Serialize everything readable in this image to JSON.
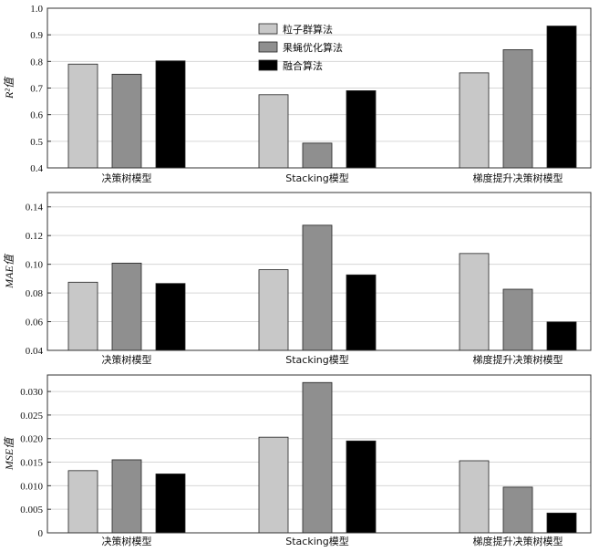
{
  "chart_data": [
    {
      "type": "bar",
      "categories": [
        "决策树模型",
        "Stacking模型",
        "梯度提升决策树模型"
      ],
      "series": [
        {
          "name": "粒子群算法",
          "values": [
            0.79,
            0.675,
            0.757
          ]
        },
        {
          "name": "果蝇优化算法",
          "values": [
            0.752,
            0.493,
            0.844
          ]
        },
        {
          "name": "融合算法",
          "values": [
            0.802,
            0.69,
            0.933
          ]
        }
      ],
      "ylabel": "R²值",
      "ylim": [
        0.4,
        1.0
      ],
      "yticks": [
        "0.4",
        "0.5",
        "0.6",
        "0.7",
        "0.8",
        "0.9",
        "1.0"
      ],
      "grid": true,
      "legend": "top-center"
    },
    {
      "type": "bar",
      "categories": [
        "决策树模型",
        "Stacking模型",
        "梯度提升决策树模型"
      ],
      "series": [
        {
          "name": "粒子群算法",
          "values": [
            0.0875,
            0.0962,
            0.1075
          ]
        },
        {
          "name": "果蝇优化算法",
          "values": [
            0.1008,
            0.1272,
            0.0826
          ]
        },
        {
          "name": "融合算法",
          "values": [
            0.0866,
            0.0926,
            0.0598
          ]
        }
      ],
      "ylabel": "MAE值",
      "ylim": [
        0.04,
        0.15
      ],
      "yticks": [
        "0.04",
        "0.06",
        "0.08",
        "0.10",
        "0.12",
        "0.14"
      ],
      "grid": true
    },
    {
      "type": "bar",
      "categories": [
        "决策树模型",
        "Stacking模型",
        "梯度提升决策树模型"
      ],
      "series": [
        {
          "name": "粒子群算法",
          "values": [
            0.0132,
            0.0203,
            0.0153
          ]
        },
        {
          "name": "果蝇优化算法",
          "values": [
            0.0155,
            0.0319,
            0.0097
          ]
        },
        {
          "name": "融合算法",
          "values": [
            0.0125,
            0.0195,
            0.0042
          ]
        }
      ],
      "ylabel": "MSE值",
      "ylim": [
        0,
        0.0335
      ],
      "yticks": [
        "0",
        "0.005",
        "0.010",
        "0.015",
        "0.020",
        "0.025",
        "0.030"
      ],
      "grid": true
    }
  ],
  "colors": {
    "series": [
      "#c8c8c8",
      "#8f8f8f",
      "#000000"
    ],
    "grid": "#d6d6d6",
    "axis": "#333333"
  }
}
